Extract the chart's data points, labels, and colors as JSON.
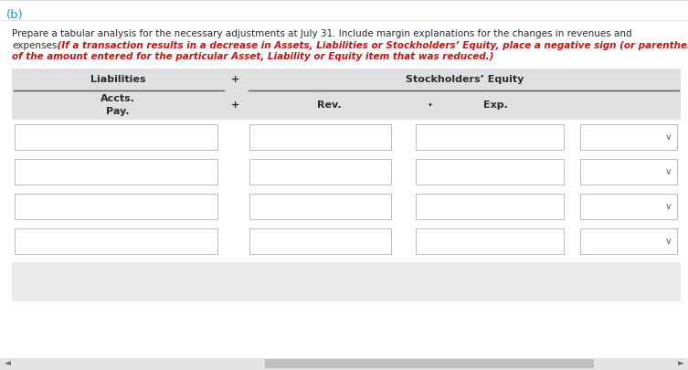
{
  "label_b": "(b)",
  "label_b_color": "#1a9cd8",
  "intro_black_1": "Prepare a tabular analysis for the necessary adjustments at July 31. Include margin explanations for the changes in revenues and",
  "intro_black_2": "expenses.",
  "intro_red_1": " (If a transaction results in a decrease in Assets, Liabilities or Stockholders’ Equity, place a negative sign (or parentheses) in front",
  "intro_red_2": "of the amount entered for the particular Asset, Liability or Equity item that was reduced.)",
  "header1": "Liabilities",
  "header_plus": "+",
  "header2": "Stockholders’ Equity",
  "sub1": "Accts.",
  "sub2": "Pay.",
  "sub_plus": "+",
  "sub_rev": "Rev.",
  "sub_dot": "•",
  "sub_exp": "Exp.",
  "n_rows": 4,
  "bg_light": "#ebebeb",
  "header_bg": "#e0e0e0",
  "white": "#ffffff",
  "box_edge": "#bbbbbb",
  "text_dark": "#2b2b2b",
  "text_red": "#cc1111",
  "scroll_bg": "#e4e4e4",
  "scroll_thumb": "#c0c0c0",
  "figsize": [
    7.53,
    4.05
  ],
  "dpi": 100
}
